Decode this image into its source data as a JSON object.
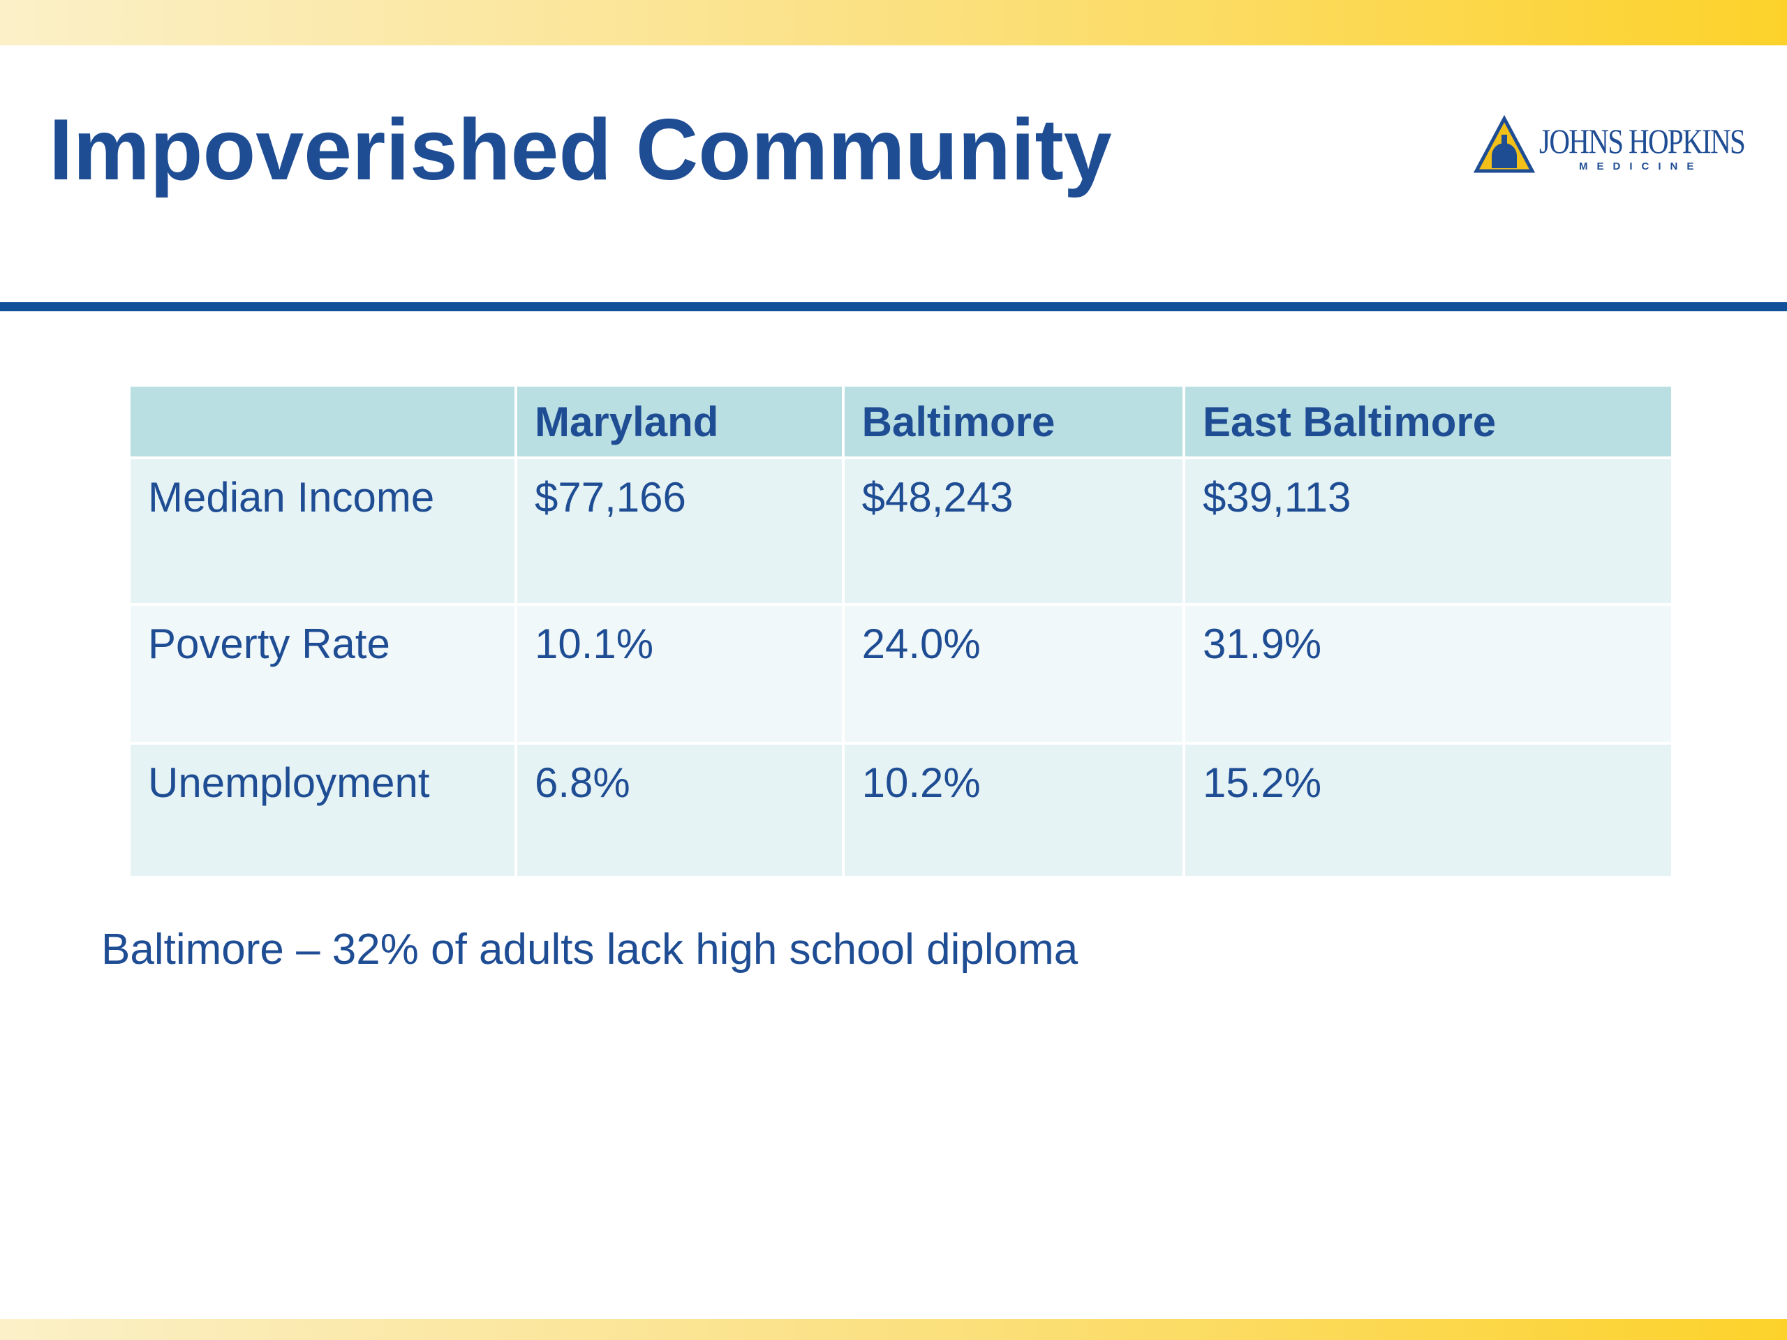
{
  "slide": {
    "title": "Impoverished Community",
    "logo": {
      "name": "JOHNS HOPKINS",
      "subtitle": "MEDICINE",
      "icon": "dome-shield-icon"
    },
    "colors": {
      "title": "#1f4d94",
      "accent_band": "#fcd22a",
      "rule": "#12519a",
      "table_header": "#b9dfe2"
    }
  },
  "table": {
    "headers": [
      "",
      "Maryland",
      "Baltimore",
      "East Baltimore"
    ],
    "rows": [
      [
        "Median Income",
        "$77,166",
        "$48,243",
        "$39,113"
      ],
      [
        "Poverty Rate",
        "10.1%",
        "24.0%",
        "31.9%"
      ],
      [
        "Unemployment",
        "6.8%",
        "10.2%",
        "15.2%"
      ]
    ]
  },
  "note": "Baltimore – 32% of adults lack high school diploma"
}
